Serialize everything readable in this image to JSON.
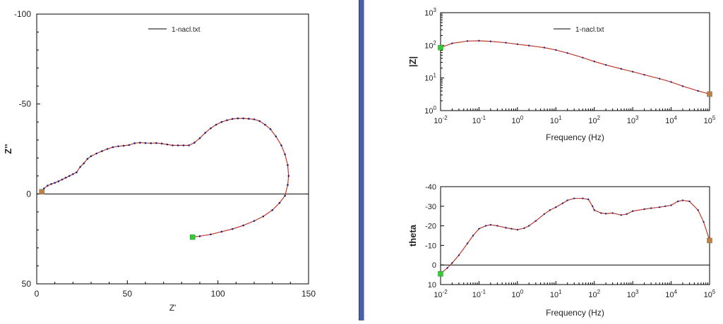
{
  "chart_data": [
    {
      "type": "scatter",
      "name": "nyquist",
      "xlabel": "Z'",
      "ylabel": "Z''",
      "xlim": [
        0,
        150
      ],
      "ylim": [
        -100,
        50
      ],
      "y_inverted": true,
      "xticks": [
        "0",
        "50",
        "100",
        "150"
      ],
      "yticks": [
        "-100",
        "-50",
        "0",
        "50"
      ],
      "legend": "1-nacl.txt",
      "legend_position": "top-center",
      "line_color": "#c0392b",
      "marker_color": "#1a237e",
      "endpoint_color": "#33cc33",
      "series": [
        {
          "name": "1-nacl.txt",
          "x": [
            2.8,
            4,
            6,
            8,
            10,
            12,
            14,
            16,
            18,
            20,
            22,
            24,
            26,
            28,
            30,
            33,
            36,
            39,
            42,
            45,
            48,
            51,
            54,
            57,
            60,
            63,
            66,
            69,
            72,
            75,
            78,
            81,
            84,
            87,
            90,
            93,
            96,
            99,
            102,
            105,
            108,
            111,
            114,
            117,
            120,
            123,
            126,
            129,
            132,
            135,
            137,
            138.5,
            139,
            138.5,
            137,
            134,
            130,
            125,
            120,
            114,
            108,
            102,
            96,
            90,
            86
          ],
          "y": [
            -1.2,
            -3,
            -4.6,
            -5.5,
            -6.2,
            -7,
            -8,
            -9,
            -10,
            -11,
            -12,
            -15,
            -17,
            -19.5,
            -21,
            -22.5,
            -23.8,
            -25,
            -26,
            -26.5,
            -26.8,
            -27.2,
            -28.2,
            -28.5,
            -28.3,
            -28.2,
            -28.3,
            -28,
            -27.5,
            -27,
            -27,
            -27,
            -27,
            -28.5,
            -31,
            -34,
            -36.5,
            -38.5,
            -40,
            -41,
            -41.7,
            -42,
            -42,
            -41.8,
            -41.5,
            -40.5,
            -38.5,
            -36,
            -32,
            -27,
            -22,
            -16,
            -10,
            -5,
            1,
            5,
            9,
            12.5,
            15,
            17.5,
            19.5,
            21,
            22.5,
            23.5,
            24
          ]
        }
      ]
    },
    {
      "type": "line",
      "name": "bode-magnitude",
      "xlabel": "Frequency (Hz)",
      "ylabel": "|Z|",
      "xscale": "log",
      "yscale": "log",
      "xlim": [
        0.01,
        100000
      ],
      "ylim": [
        1,
        1000
      ],
      "xticks": [
        "10-2",
        "10-1",
        "100",
        "101",
        "102",
        "103",
        "104",
        "105"
      ],
      "yticks": [
        "100",
        "101",
        "102",
        "103"
      ],
      "legend": "1-nacl.txt",
      "legend_position": "top-center",
      "series": [
        {
          "name": "1-nacl.txt",
          "x": [
            0.01,
            0.02,
            0.05,
            0.1,
            0.2,
            0.5,
            1,
            2,
            5,
            10,
            20,
            50,
            100,
            200,
            500,
            1000,
            2000,
            5000,
            10000,
            20000,
            50000,
            100000
          ],
          "y": [
            85,
            115,
            135,
            138,
            132,
            120,
            108,
            98,
            85,
            72,
            58,
            42,
            32,
            25,
            19,
            15.5,
            12.5,
            9.5,
            7.5,
            5.6,
            4,
            3.2
          ]
        }
      ]
    },
    {
      "type": "line",
      "name": "bode-phase",
      "xlabel": "Frequency (Hz)",
      "ylabel": "theta",
      "xscale": "log",
      "xlim": [
        0.01,
        100000
      ],
      "ylim": [
        -40,
        10
      ],
      "y_inverted": true,
      "xticks": [
        "10-2",
        "10-1",
        "100",
        "101",
        "102",
        "103",
        "104",
        "105"
      ],
      "yticks": [
        "-40",
        "-30",
        "-20",
        "-10",
        "0",
        "10"
      ],
      "series": [
        {
          "name": "1-nacl.txt",
          "x": [
            0.01,
            0.015,
            0.02,
            0.03,
            0.05,
            0.07,
            0.1,
            0.15,
            0.2,
            0.3,
            0.5,
            0.7,
            1,
            1.5,
            2,
            3,
            5,
            7,
            10,
            15,
            20,
            30,
            50,
            70,
            90,
            100,
            150,
            200,
            300,
            500,
            700,
            1000,
            2000,
            3000,
            5000,
            7000,
            10000,
            15000,
            20000,
            30000,
            50000,
            70000,
            100000
          ],
          "y": [
            4.5,
            1.5,
            -1,
            -5,
            -11,
            -15,
            -18.5,
            -20,
            -20.5,
            -20,
            -19,
            -18.5,
            -18,
            -18.8,
            -20,
            -22.5,
            -26,
            -28,
            -29.5,
            -31.5,
            -33,
            -34,
            -34,
            -33.5,
            -30,
            -28,
            -26.5,
            -26.2,
            -26.5,
            -25.5,
            -26,
            -27.5,
            -28.5,
            -29,
            -29.5,
            -30,
            -30.5,
            -32.5,
            -33,
            -32.5,
            -28,
            -22,
            -12.5
          ]
        }
      ]
    }
  ]
}
